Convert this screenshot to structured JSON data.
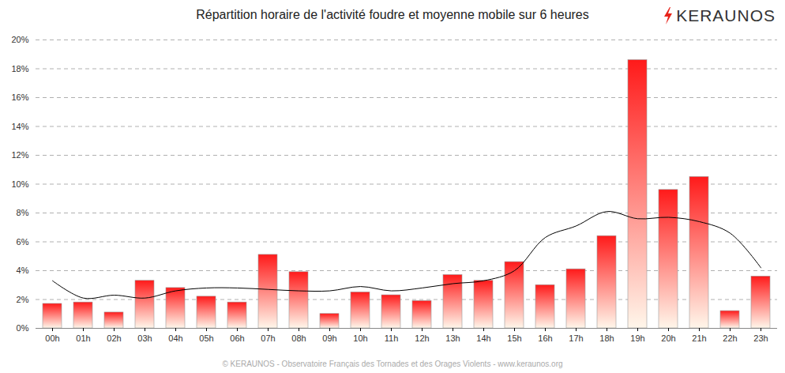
{
  "chart_data": {
    "type": "bar",
    "title": "Répartition horaire de l'activité foudre et moyenne mobile sur 6 heures",
    "logo": "KERAUNOS",
    "caption": "© KERAUNOS - Observatoire Français des Tornades et des Orages Violents - www.keraunos.org",
    "categories": [
      "00h",
      "01h",
      "02h",
      "03h",
      "04h",
      "05h",
      "06h",
      "07h",
      "08h",
      "09h",
      "10h",
      "11h",
      "12h",
      "13h",
      "14h",
      "15h",
      "16h",
      "17h",
      "18h",
      "19h",
      "20h",
      "21h",
      "22h",
      "23h"
    ],
    "series": [
      {
        "type": "bar",
        "color": "#ff1a1a",
        "values": [
          1.7,
          1.8,
          1.1,
          3.3,
          2.8,
          2.2,
          1.8,
          5.1,
          3.9,
          1.0,
          2.5,
          2.3,
          1.9,
          3.7,
          3.3,
          4.6,
          3.0,
          4.1,
          6.4,
          18.6,
          9.6,
          10.5,
          1.2,
          3.6
        ]
      },
      {
        "type": "line",
        "color": "#000000",
        "values": [
          3.3,
          2.1,
          2.3,
          2.1,
          2.6,
          2.8,
          2.8,
          2.7,
          2.6,
          2.6,
          2.9,
          2.6,
          2.8,
          3.1,
          3.3,
          4.0,
          6.3,
          7.1,
          8.1,
          7.6,
          7.7,
          7.4,
          6.6,
          4.2
        ]
      }
    ],
    "ylim": [
      0,
      20
    ],
    "yticks": [
      {
        "value": 0,
        "label": "0%"
      },
      {
        "value": 2,
        "label": "2%"
      },
      {
        "value": 4,
        "label": "4%"
      },
      {
        "value": 6,
        "label": "6%"
      },
      {
        "value": 8,
        "label": "8%"
      },
      {
        "value": 10,
        "label": "10%"
      },
      {
        "value": 12,
        "label": "12%"
      },
      {
        "value": 14,
        "label": "14%"
      },
      {
        "value": 16,
        "label": "16%"
      },
      {
        "value": 18,
        "label": "18%"
      },
      {
        "value": 20,
        "label": "20%"
      }
    ],
    "grid": true
  }
}
